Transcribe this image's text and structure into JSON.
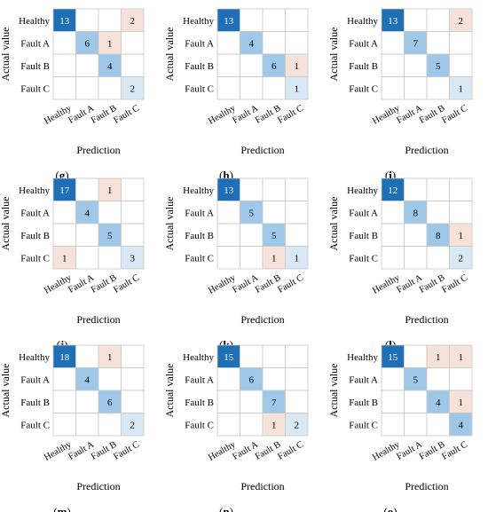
{
  "colors": {
    "diag_strong": "#1f6fb5",
    "diag_mid": "#9ec7e8",
    "diag_light": "#d9e8f5",
    "off_light": "#f7e2d9",
    "grid": "#c8c8c8",
    "text_on_dark": "#ffffff",
    "text": "#000000"
  },
  "chart_data": [
    {
      "type": "heatmap",
      "label": "g",
      "xlabel": "Prediction",
      "ylabel": "Actual value",
      "rows": [
        "Healthy",
        "Fault A",
        "Fault B",
        "Fault C"
      ],
      "cols": [
        "Healthy",
        "Fault A",
        "Fault B",
        "Fault C"
      ],
      "matrix": [
        [
          13,
          0,
          0,
          2
        ],
        [
          0,
          6,
          1,
          0
        ],
        [
          0,
          0,
          4,
          0
        ],
        [
          0,
          0,
          0,
          2
        ]
      ]
    },
    {
      "type": "heatmap",
      "label": "h",
      "xlabel": "Prediction",
      "ylabel": "Actual value",
      "rows": [
        "Healthy",
        "Fault A",
        "Fault B",
        "Fault C"
      ],
      "cols": [
        "Healthy",
        "Fault A",
        "Fault B",
        "Fault C"
      ],
      "matrix": [
        [
          13,
          0,
          0,
          0
        ],
        [
          0,
          4,
          0,
          0
        ],
        [
          0,
          0,
          6,
          1
        ],
        [
          0,
          0,
          0,
          1
        ]
      ]
    },
    {
      "type": "heatmap",
      "label": "i",
      "xlabel": "Prediction",
      "ylabel": "Actual value",
      "rows": [
        "Healthy",
        "Fault A",
        "Fault B",
        "Fault C"
      ],
      "cols": [
        "Healthy",
        "Fault A",
        "Fault B",
        "Fault C"
      ],
      "matrix": [
        [
          13,
          0,
          0,
          2
        ],
        [
          0,
          7,
          0,
          0
        ],
        [
          0,
          0,
          5,
          0
        ],
        [
          0,
          0,
          0,
          1
        ]
      ]
    },
    {
      "type": "heatmap",
      "label": "j",
      "xlabel": "Prediction",
      "ylabel": "Actual value",
      "rows": [
        "Healthy",
        "Fault A",
        "Fault B",
        "Fault C"
      ],
      "cols": [
        "Healthy",
        "Fault A",
        "Fault B",
        "Fault C"
      ],
      "matrix": [
        [
          17,
          0,
          1,
          0
        ],
        [
          0,
          4,
          0,
          0
        ],
        [
          0,
          0,
          5,
          0
        ],
        [
          1,
          0,
          0,
          3
        ]
      ]
    },
    {
      "type": "heatmap",
      "label": "k",
      "xlabel": "Prediction",
      "ylabel": "Actual value",
      "rows": [
        "Healthy",
        "Fault A",
        "Fault B",
        "Fault C"
      ],
      "cols": [
        "Healthy",
        "Fault A",
        "Fault B",
        "Fault C"
      ],
      "matrix": [
        [
          13,
          0,
          0,
          0
        ],
        [
          0,
          5,
          0,
          0
        ],
        [
          0,
          0,
          5,
          0
        ],
        [
          0,
          0,
          1,
          1
        ]
      ]
    },
    {
      "type": "heatmap",
      "label": "l",
      "xlabel": "Prediction",
      "ylabel": "Actual value",
      "rows": [
        "Healthy",
        "Fault A",
        "Fault B",
        "Fault C"
      ],
      "cols": [
        "Healthy",
        "Fault A",
        "Fault B",
        "Fault C"
      ],
      "matrix": [
        [
          12,
          0,
          0,
          0
        ],
        [
          0,
          8,
          0,
          0
        ],
        [
          0,
          0,
          8,
          1
        ],
        [
          0,
          0,
          0,
          2
        ]
      ]
    },
    {
      "type": "heatmap",
      "label": "m",
      "xlabel": "Prediction",
      "ylabel": "Actual value",
      "rows": [
        "Healthy",
        "Fault A",
        "Fault B",
        "Fault C"
      ],
      "cols": [
        "Healthy",
        "Fault A",
        "Fault B",
        "Fault C"
      ],
      "matrix": [
        [
          18,
          0,
          1,
          0
        ],
        [
          0,
          4,
          0,
          0
        ],
        [
          0,
          0,
          6,
          0
        ],
        [
          0,
          0,
          0,
          2
        ]
      ]
    },
    {
      "type": "heatmap",
      "label": "n",
      "xlabel": "Prediction",
      "ylabel": "Actual value",
      "rows": [
        "Healthy",
        "Fault A",
        "Fault B",
        "Fault C"
      ],
      "cols": [
        "Healthy",
        "Fault A",
        "Fault B",
        "Fault C"
      ],
      "matrix": [
        [
          15,
          0,
          0,
          0
        ],
        [
          0,
          6,
          0,
          0
        ],
        [
          0,
          0,
          7,
          0
        ],
        [
          0,
          0,
          1,
          2
        ]
      ]
    },
    {
      "type": "heatmap",
      "label": "o",
      "xlabel": "Prediction",
      "ylabel": "Actual value",
      "rows": [
        "Healthy",
        "Fault A",
        "Fault B",
        "Fault C"
      ],
      "cols": [
        "Healthy",
        "Fault A",
        "Fault B",
        "Fault C"
      ],
      "matrix": [
        [
          15,
          0,
          1,
          1
        ],
        [
          0,
          5,
          0,
          0
        ],
        [
          0,
          0,
          4,
          1
        ],
        [
          0,
          0,
          0,
          4
        ]
      ]
    }
  ]
}
